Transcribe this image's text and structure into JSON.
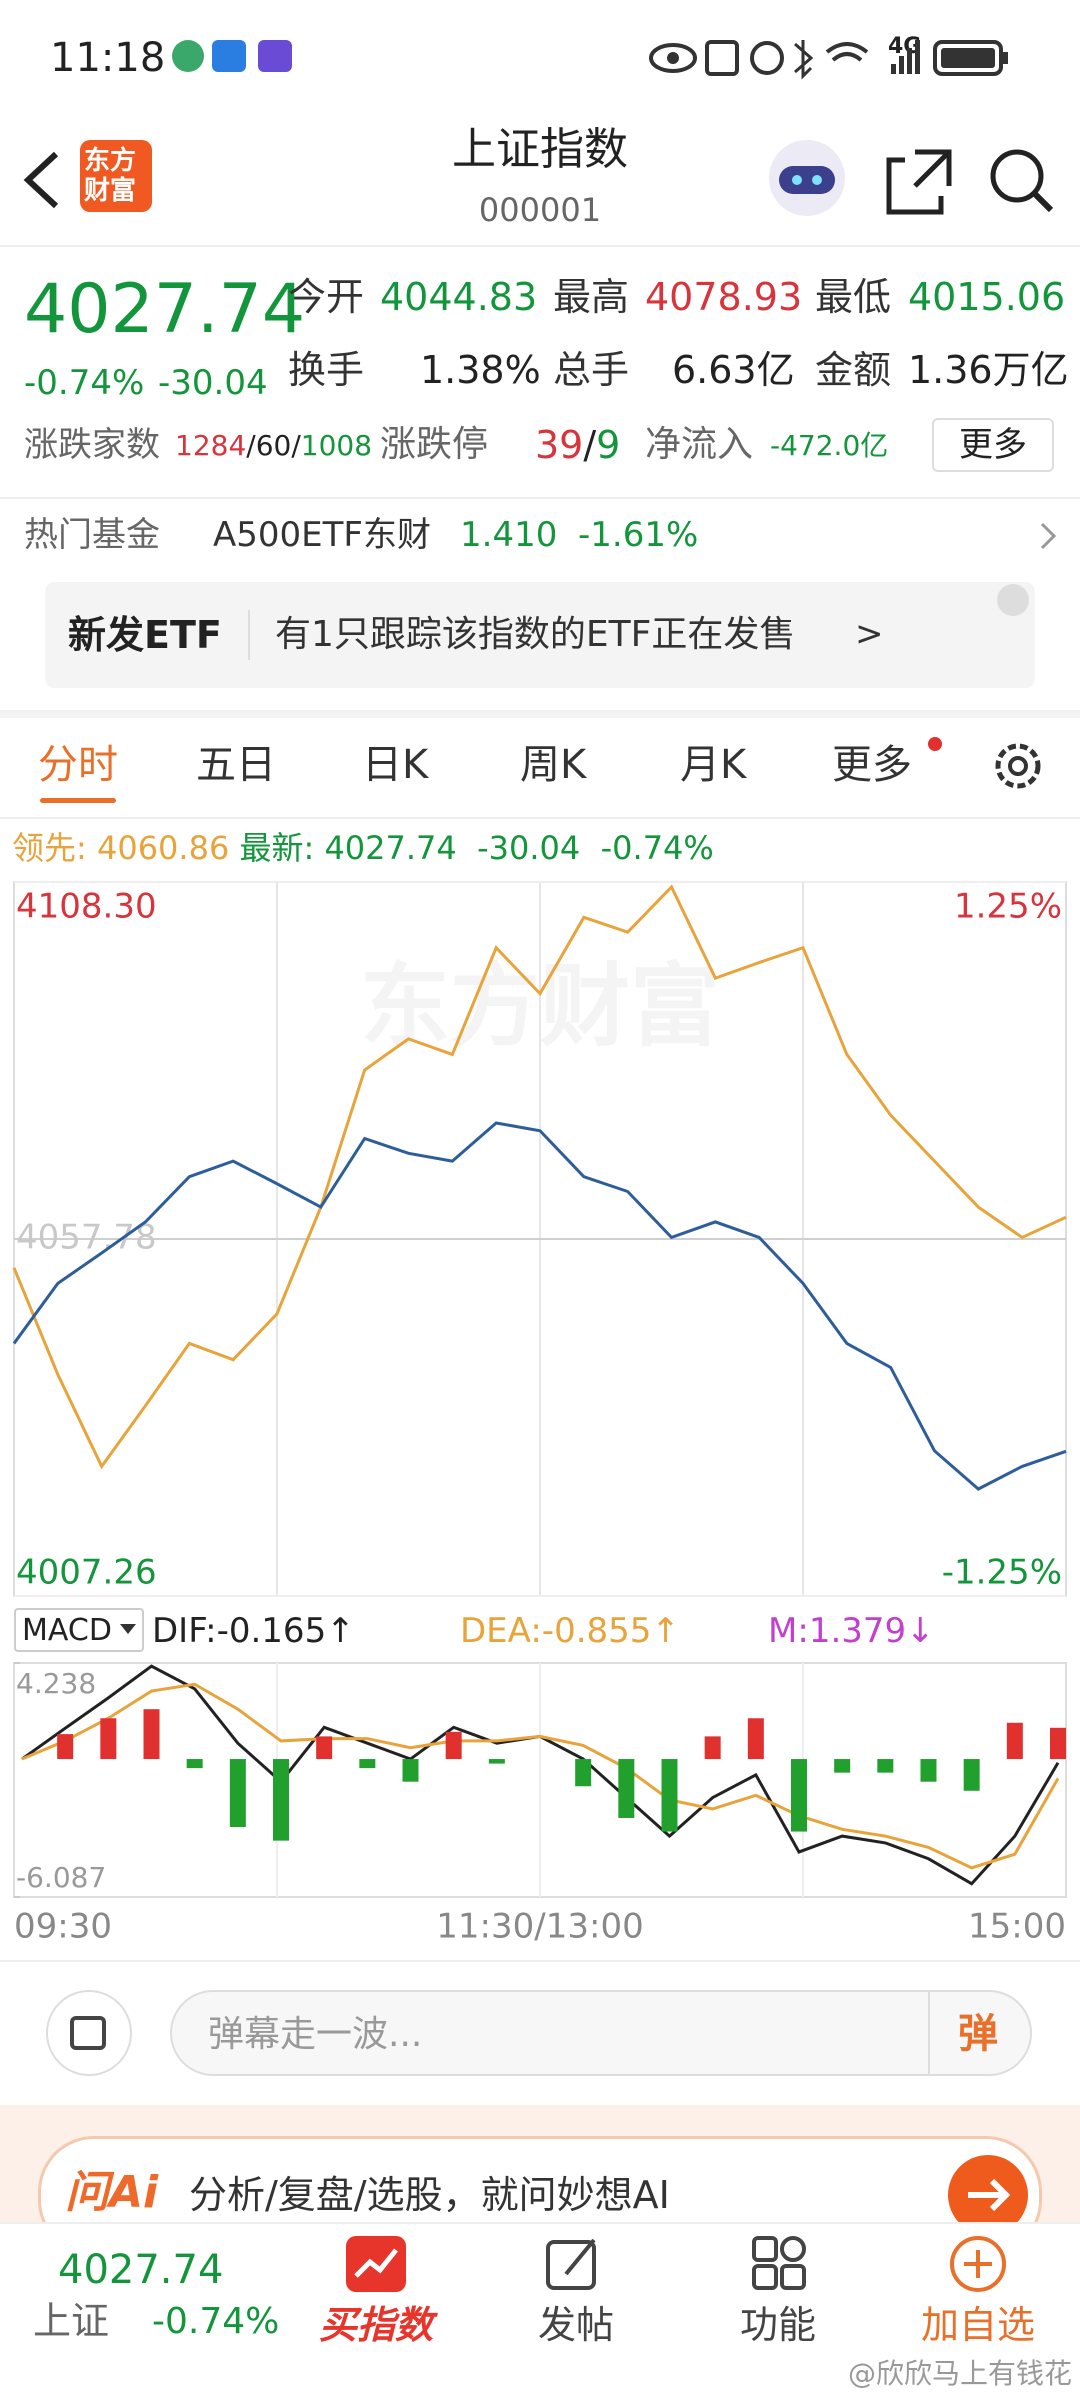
{
  "status_bar": {
    "time": "11:18",
    "network": "4G"
  },
  "header": {
    "logo": [
      "东方",
      "财富"
    ],
    "title": "上证指数",
    "code": "000001"
  },
  "quote": {
    "price": "4027.74",
    "change_pct": "-0.74%",
    "change": "-30.04",
    "stats": [
      [
        "今开",
        "4044.83"
      ],
      [
        "最高",
        "4078.93"
      ],
      [
        "最低",
        "4015.06"
      ],
      [
        "换手",
        "1.38%"
      ],
      [
        "总手",
        "6.63亿"
      ],
      [
        "金额",
        "1.36万亿"
      ]
    ],
    "breadth": {
      "label": "涨跌家数",
      "up": "1284",
      "flat": "60",
      "down": "1008",
      "separator": "/"
    },
    "limit": {
      "label": "涨跌停",
      "up": "39",
      "down": "9"
    },
    "inflow": {
      "label": "净流入",
      "value": "-472.0亿"
    },
    "more": "更多"
  },
  "hot_fund": {
    "label": "热门基金",
    "name": "A500ETF东财",
    "price": "1.410",
    "change": "-1.61%"
  },
  "banner": {
    "tag": "新发ETF",
    "text": "有1只跟踪该指数的ETF正在发售",
    "arrow": ">"
  },
  "tabs": [
    "分时",
    "五日",
    "日K",
    "周K",
    "月K",
    "更多"
  ],
  "chart_data": [
    {
      "type": "line",
      "watermark": "东方财富",
      "label_separator": ":",
      "categories": [
        "09:30",
        null,
        null,
        null,
        null,
        null,
        null,
        null,
        null,
        null,
        null,
        null,
        "11:30/13:00",
        null,
        null,
        null,
        null,
        null,
        null,
        null,
        null,
        null,
        null,
        null,
        "15:00"
      ],
      "series": [
        {
          "name": "领先",
          "color": "#e9a33b",
          "values": [
            4053.7,
            4038.6,
            4025.6,
            4034.2,
            4043.0,
            4040.7,
            4047.2,
            4062.3,
            4081.7,
            4086.1,
            4083.9,
            4099.0,
            4092.5,
            4103.3,
            4101.2,
            4107.6,
            4094.7,
            4096.9,
            4099.0,
            4083.9,
            4075.3,
            4068.8,
            4062.3,
            4058.0,
            4060.86
          ]
        },
        {
          "name": "最新",
          "color": "#2d5d9b",
          "values": [
            4043.0,
            4051.5,
            4055.8,
            4060.2,
            4066.6,
            4068.8,
            4065.6,
            4062.3,
            4072.0,
            4069.9,
            4068.8,
            4074.2,
            4073.1,
            4066.6,
            4064.5,
            4058.0,
            4060.2,
            4058.0,
            4051.5,
            4043.0,
            4039.6,
            4027.8,
            4022.4,
            4025.6,
            4027.74
          ]
        }
      ],
      "ylim": [
        4007.26,
        4108.3
      ],
      "yticks": [
        4007.26,
        4057.78,
        {
          "value": 4108.3,
          "label": "4108.30"
        }
      ],
      "y2lim": [
        -1.25,
        1.25
      ],
      "y2ticks": [
        {
          "value": -1.25,
          "label": "-1.25%"
        },
        {
          "value": 1.25,
          "label": "1.25%"
        }
      ],
      "grid": true
    },
    {
      "type": "macd",
      "selector": "MACD",
      "label_separator": ":",
      "series": [
        {
          "name": "DIF",
          "color": "#222222",
          "trend": "↑",
          "values": [
            0,
            1.36,
            2.7,
            4.1,
            3.1,
            0.7,
            -1.0,
            1.4,
            0.7,
            0,
            1.4,
            0.7,
            1.0,
            0,
            -1.7,
            -3.4,
            -1.7,
            -0.7,
            -4.1,
            -3.4,
            -3.7,
            -4.4,
            -5.5,
            -3.4,
            -0.165
          ]
        },
        {
          "name": "DEA",
          "color": "#e9a33b",
          "trend": "↑",
          "values": [
            0,
            0.8,
            1.8,
            3.0,
            3.3,
            2.2,
            0.8,
            0.9,
            0.9,
            0.5,
            0.8,
            0.8,
            1.0,
            0.6,
            -0.4,
            -1.8,
            -2.2,
            -1.6,
            -2.5,
            -3.1,
            -3.4,
            -3.9,
            -4.8,
            -4.2,
            -0.855
          ]
        },
        {
          "name": "M",
          "color": "#c23fcf",
          "trend": "↓",
          "bar": true,
          "up_color": "#e0312f",
          "down_color": "#22a02e",
          "values": [
            0,
            1.1,
            1.8,
            2.2,
            -0.4,
            -3.0,
            -3.6,
            1.0,
            -0.4,
            -1.0,
            1.2,
            -0.2,
            0,
            -1.2,
            -2.6,
            -3.2,
            1.0,
            1.8,
            -3.2,
            -0.6,
            -0.6,
            -1.0,
            -1.4,
            1.6,
            1.379
          ]
        }
      ],
      "ylim": [
        -6.087,
        4.238
      ],
      "yticks": [
        -6.087,
        4.238
      ]
    }
  ],
  "comment": {
    "placeholder": "弹幕走一波...",
    "button": "弹"
  },
  "ai_banner": {
    "logo": "问Ai",
    "text": "分析/复盘/选股，就问妙想AI"
  },
  "bottom_bar": {
    "price": "4027.74",
    "name": "上证",
    "change": "-0.74%",
    "items": [
      "买指数",
      "发帖",
      "功能",
      "加自选"
    ]
  },
  "watermark": "@欣欣马上有钱花"
}
